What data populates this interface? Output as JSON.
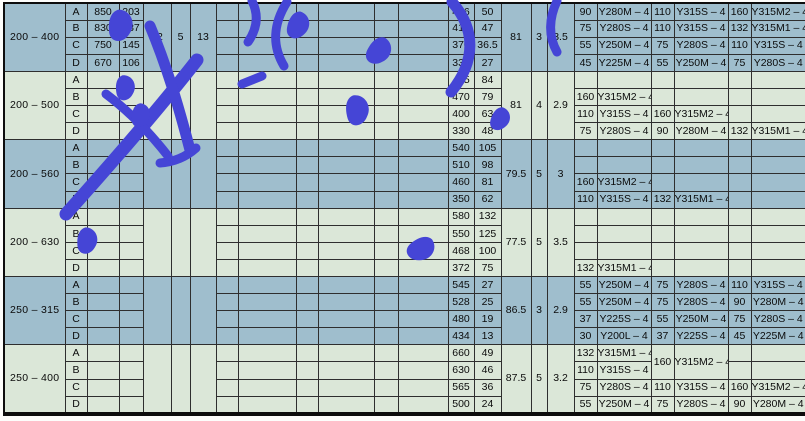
{
  "colors": {
    "row_blue": "#9fbecd",
    "row_green": "#dbe7d8",
    "grid": "#2e2e2e",
    "border": "#0d0d0d",
    "watermark": "#4545d6"
  },
  "watermark": {
    "description": "blue brush-stroke stamp, diagonal"
  },
  "table": {
    "groups": [
      {
        "label": "200 – 400",
        "tone": "blue",
        "left": [
          "82",
          "5",
          "13"
        ],
        "mid": [
          "81",
          "3",
          "3.5"
        ],
        "rows": [
          {
            "letter": "A",
            "v1": "850",
            "v2": "203",
            "flow": "426",
            "head": "50",
            "pairs": [
              [
                "90",
                "Y280M – 4"
              ],
              [
                "110",
                "Y315S – 4"
              ],
              [
                "160",
                "Y315M2 – 4"
              ]
            ]
          },
          {
            "letter": "B",
            "v1": "830",
            "v2": "187",
            "flow": "410",
            "head": "47",
            "pairs": [
              [
                "75",
                "Y280S – 4"
              ],
              [
                "110",
                "Y315S – 4"
              ],
              [
                "132",
                "Y315M1 – 4"
              ]
            ]
          },
          {
            "letter": "C",
            "v1": "750",
            "v2": "145",
            "flow": "370",
            "head": "36.5",
            "pairs": [
              [
                "55",
                "Y250M – 4"
              ],
              [
                "75",
                "Y280S – 4"
              ],
              [
                "110",
                "Y315S – 4"
              ]
            ]
          },
          {
            "letter": "D",
            "v1": "670",
            "v2": "106",
            "flow": "332",
            "head": "27",
            "pairs": [
              [
                "45",
                "Y225M – 4"
              ],
              [
                "55",
                "Y250M – 4"
              ],
              [
                "75",
                "Y280S – 4"
              ]
            ]
          }
        ]
      },
      {
        "label": "200 – 500",
        "tone": "green",
        "left": [
          "",
          "",
          ""
        ],
        "mid": [
          "81",
          "4",
          "2.9"
        ],
        "rows": [
          {
            "letter": "A",
            "v1": "",
            "v2": "",
            "flow": "495",
            "head": "84",
            "pairs": [
              null,
              null,
              null
            ]
          },
          {
            "letter": "B",
            "v1": "",
            "v2": "",
            "flow": "470",
            "head": "79",
            "pairs": [
              [
                "160",
                "Y315M2 – 4"
              ],
              null,
              null
            ]
          },
          {
            "letter": "C",
            "v1": "",
            "v2": "",
            "flow": "400",
            "head": "63",
            "pairs": [
              [
                "110",
                "Y315S – 4"
              ],
              [
                "160",
                "Y315M2 – 4"
              ],
              null
            ]
          },
          {
            "letter": "D",
            "v1": "",
            "v2": "",
            "flow": "330",
            "head": "48",
            "pairs": [
              [
                "75",
                "Y280S – 4"
              ],
              [
                "90",
                "Y280M – 4"
              ],
              [
                "132",
                "Y315M1 – 4"
              ]
            ]
          }
        ]
      },
      {
        "label": "200 – 560",
        "tone": "blue",
        "left": [
          "",
          "",
          ""
        ],
        "mid": [
          "79.5",
          "5",
          "3"
        ],
        "rows": [
          {
            "letter": "A",
            "v1": "",
            "v2": "",
            "flow": "540",
            "head": "105",
            "pairs": [
              null,
              null,
              null
            ]
          },
          {
            "letter": "B",
            "v1": "",
            "v2": "",
            "flow": "510",
            "head": "98",
            "pairs": [
              null,
              null,
              null
            ]
          },
          {
            "letter": "C",
            "v1": "",
            "v2": "",
            "flow": "460",
            "head": "81",
            "pairs": [
              [
                "160",
                "Y315M2 – 4"
              ],
              null,
              null
            ]
          },
          {
            "letter": "D",
            "v1": "",
            "v2": "",
            "flow": "350",
            "head": "62",
            "pairs": [
              [
                "110",
                "Y315S – 4"
              ],
              [
                "132",
                "Y315M1 – 4"
              ],
              null
            ]
          }
        ]
      },
      {
        "label": "200 – 630",
        "tone": "green",
        "left": [
          "",
          "",
          ""
        ],
        "mid": [
          "77.5",
          "5",
          "3.5"
        ],
        "rows": [
          {
            "letter": "A",
            "v1": "",
            "v2": "",
            "flow": "580",
            "head": "132",
            "pairs": [
              null,
              null,
              null
            ]
          },
          {
            "letter": "B",
            "v1": "",
            "v2": "",
            "flow": "550",
            "head": "125",
            "pairs": [
              null,
              null,
              null
            ]
          },
          {
            "letter": "C",
            "v1": "",
            "v2": "",
            "flow": "468",
            "head": "100",
            "pairs": [
              null,
              null,
              null
            ]
          },
          {
            "letter": "D",
            "v1": "",
            "v2": "",
            "flow": "372",
            "head": "75",
            "pairs": [
              [
                "132",
                "Y315M1 – 4"
              ],
              null,
              null
            ]
          }
        ]
      },
      {
        "label": "250 – 315",
        "tone": "blue",
        "left": [
          "",
          "",
          ""
        ],
        "mid": [
          "86.5",
          "3",
          "2.9"
        ],
        "rows": [
          {
            "letter": "A",
            "v1": "",
            "v2": "",
            "flow": "545",
            "head": "27",
            "pairs": [
              [
                "55",
                "Y250M – 4"
              ],
              [
                "75",
                "Y280S – 4"
              ],
              [
                "110",
                "Y315S – 4"
              ]
            ]
          },
          {
            "letter": "B",
            "v1": "",
            "v2": "",
            "flow": "528",
            "head": "25",
            "pairs": [
              [
                "55",
                "Y250M – 4"
              ],
              [
                "75",
                "Y280S – 4"
              ],
              [
                "90",
                "Y280M – 4"
              ]
            ]
          },
          {
            "letter": "C",
            "v1": "",
            "v2": "",
            "flow": "480",
            "head": "19",
            "pairs": [
              [
                "37",
                "Y225S – 4"
              ],
              [
                "55",
                "Y250M – 4"
              ],
              [
                "75",
                "Y280S – 4"
              ]
            ]
          },
          {
            "letter": "D",
            "v1": "",
            "v2": "",
            "flow": "434",
            "head": "13",
            "pairs": [
              [
                "30",
                "Y200L – 4"
              ],
              [
                "37",
                "Y225S – 4"
              ],
              [
                "45",
                "Y225M – 4"
              ]
            ]
          }
        ]
      },
      {
        "label": "250 – 400",
        "tone": "green",
        "left": [
          "",
          "",
          ""
        ],
        "mid": [
          "87.5",
          "5",
          "3.2"
        ],
        "rows": [
          {
            "letter": "A",
            "v1": "",
            "v2": "",
            "flow": "660",
            "head": "49",
            "pairs": [
              [
                "132",
                "Y315M1 – 4"
              ],
              {
                "p": "160",
                "m": "Y315M2 – 4",
                "span": 2
              },
              null
            ]
          },
          {
            "letter": "B",
            "v1": "",
            "v2": "",
            "flow": "630",
            "head": "46",
            "pairs": [
              [
                "110",
                "Y315S – 4"
              ],
              "skip",
              null
            ]
          },
          {
            "letter": "C",
            "v1": "",
            "v2": "",
            "flow": "565",
            "head": "36",
            "pairs": [
              [
                "75",
                "Y280S – 4"
              ],
              [
                "110",
                "Y315S – 4"
              ],
              [
                "160",
                "Y315M2 – 4"
              ]
            ]
          },
          {
            "letter": "D",
            "v1": "",
            "v2": "",
            "flow": "500",
            "head": "24",
            "pairs": [
              [
                "55",
                "Y250M – 4"
              ],
              [
                "75",
                "Y280S – 4"
              ],
              [
                "90",
                "Y280M – 4"
              ]
            ]
          }
        ]
      }
    ]
  }
}
